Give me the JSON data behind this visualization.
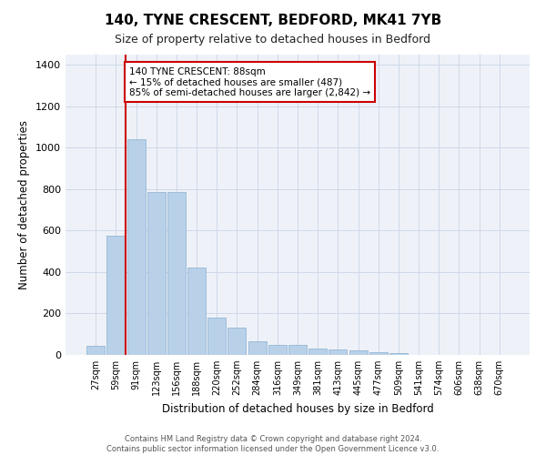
{
  "title1": "140, TYNE CRESCENT, BEDFORD, MK41 7YB",
  "title2": "Size of property relative to detached houses in Bedford",
  "xlabel": "Distribution of detached houses by size in Bedford",
  "ylabel": "Number of detached properties",
  "categories": [
    "27sqm",
    "59sqm",
    "91sqm",
    "123sqm",
    "156sqm",
    "188sqm",
    "220sqm",
    "252sqm",
    "284sqm",
    "316sqm",
    "349sqm",
    "381sqm",
    "413sqm",
    "445sqm",
    "477sqm",
    "509sqm",
    "541sqm",
    "574sqm",
    "606sqm",
    "638sqm",
    "670sqm"
  ],
  "values": [
    45,
    575,
    1040,
    785,
    785,
    420,
    180,
    130,
    65,
    50,
    47,
    30,
    27,
    20,
    13,
    8,
    0,
    0,
    0,
    0,
    0
  ],
  "bar_color": "#b8d0e8",
  "bar_edge_color": "#8ab0d0",
  "highlight_line_color": "#cc0000",
  "annotation_line1": "140 TYNE CRESCENT: 88sqm",
  "annotation_line2": "← 15% of detached houses are smaller (487)",
  "annotation_line3": "85% of semi-detached houses are larger (2,842) →",
  "annotation_box_color": "#cc0000",
  "ylim": [
    0,
    1450
  ],
  "yticks": [
    0,
    200,
    400,
    600,
    800,
    1000,
    1200,
    1400
  ],
  "footer1": "Contains HM Land Registry data © Crown copyright and database right 2024.",
  "footer2": "Contains public sector information licensed under the Open Government Licence v3.0.",
  "bg_color": "#eef2f8",
  "grid_color": "#d0d8e8",
  "title1_fontsize": 11,
  "title2_fontsize": 9,
  "highlight_bar_index": 2
}
